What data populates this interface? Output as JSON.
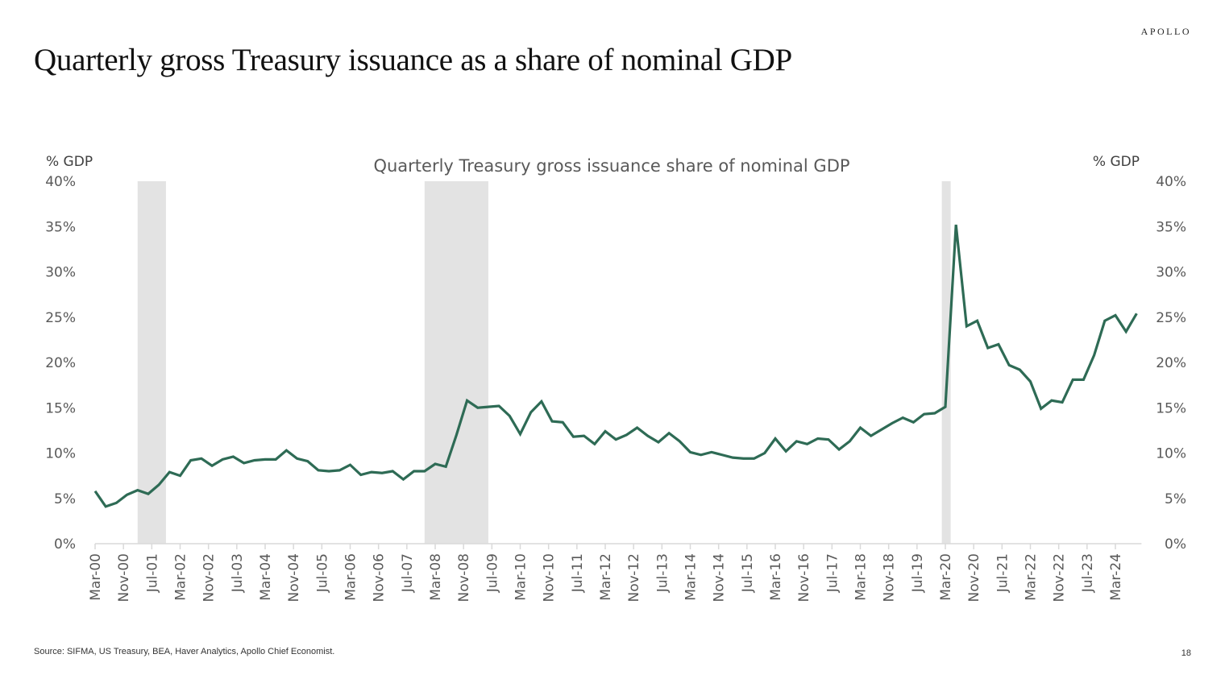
{
  "header": {
    "brand": "APOLLO",
    "title": "Quarterly gross Treasury issuance as a share of nominal GDP"
  },
  "footer": {
    "source": "Source: SIFMA, US Treasury, BEA, Haver Analytics, Apollo Chief Economist.",
    "page_number": "18"
  },
  "colors": {
    "line": "#2E6B55",
    "recession_band": "#E3E3E3",
    "axis": "#D9D9D9",
    "text": "#595959"
  },
  "chart_data": {
    "type": "line",
    "title": "Quarterly Treasury gross issuance share of nominal GDP",
    "ylabel_left": "% GDP",
    "ylabel_right": "% GDP",
    "xlabel": "",
    "ylim": [
      0,
      40
    ],
    "yticks": [
      0,
      5,
      10,
      15,
      20,
      25,
      30,
      35,
      40
    ],
    "ytick_labels": [
      "0%",
      "5%",
      "10%",
      "15%",
      "20%",
      "25%",
      "30%",
      "35%",
      "40%"
    ],
    "grid": false,
    "legend": "none",
    "x_start": "Mar-00",
    "x_frequency": "quarterly",
    "x_tick_labels": [
      "Mar-00",
      "Nov-00",
      "Jul-01",
      "Mar-02",
      "Nov-02",
      "Jul-03",
      "Mar-04",
      "Nov-04",
      "Jul-05",
      "Mar-06",
      "Nov-06",
      "Jul-07",
      "Mar-08",
      "Nov-08",
      "Jul-09",
      "Mar-10",
      "Nov-10",
      "Jul-11",
      "Mar-12",
      "Nov-12",
      "Jul-13",
      "Mar-14",
      "Nov-14",
      "Jul-15",
      "Mar-16",
      "Nov-16",
      "Jul-17",
      "Mar-18",
      "Nov-18",
      "Jul-19",
      "Mar-20",
      "Nov-20",
      "Jul-21",
      "Mar-22",
      "Nov-22",
      "Jul-23",
      "Mar-24"
    ],
    "x_tick_months_from_start": [
      0,
      8,
      16,
      24,
      32,
      40,
      48,
      56,
      64,
      72,
      80,
      88,
      96,
      104,
      112,
      120,
      128,
      136,
      144,
      152,
      160,
      168,
      176,
      184,
      192,
      200,
      208,
      216,
      224,
      232,
      240,
      248,
      256,
      264,
      272,
      280,
      288
    ],
    "recession_bands_months_from_start": [
      [
        12,
        20
      ],
      [
        93,
        111
      ],
      [
        239,
        241.5
      ]
    ],
    "series": [
      {
        "name": "Quarterly Treasury gross issuance share of nominal GDP",
        "values": [
          5.8,
          4.1,
          4.5,
          5.4,
          5.9,
          5.5,
          6.5,
          7.9,
          7.5,
          9.2,
          9.4,
          8.6,
          9.3,
          9.6,
          8.9,
          9.2,
          9.3,
          9.3,
          10.3,
          9.4,
          9.1,
          8.1,
          8.0,
          8.1,
          8.7,
          7.6,
          7.9,
          7.8,
          8.0,
          7.1,
          8.0,
          8.0,
          8.8,
          8.5,
          12.0,
          15.8,
          15.0,
          15.1,
          15.2,
          14.1,
          12.1,
          14.5,
          15.7,
          13.5,
          13.4,
          11.8,
          11.9,
          11.0,
          12.4,
          11.5,
          12.0,
          12.8,
          11.9,
          11.2,
          12.2,
          11.3,
          10.1,
          9.8,
          10.1,
          9.8,
          9.5,
          9.4,
          9.4,
          10.0,
          11.6,
          10.2,
          11.3,
          11.0,
          11.6,
          11.5,
          10.4,
          11.3,
          12.8,
          11.9,
          12.6,
          13.3,
          13.9,
          13.4,
          14.3,
          14.4,
          15.1,
          35.2,
          24.0,
          24.6,
          21.6,
          22.0,
          19.7,
          19.2,
          17.9,
          14.9,
          15.8,
          15.6,
          18.1,
          18.1,
          20.8,
          24.6,
          25.2,
          23.4,
          25.4
        ]
      }
    ]
  }
}
